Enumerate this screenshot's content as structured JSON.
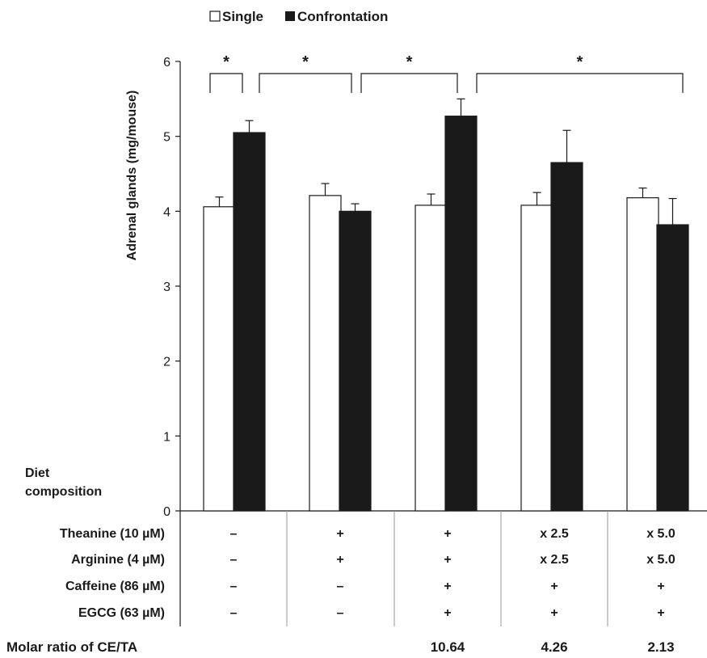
{
  "chart_data": {
    "type": "bar",
    "ylabel": "Adrenal glands (mg/mouse)",
    "ylim": [
      0,
      6
    ],
    "yticks": [
      "0",
      "1",
      "2",
      "3",
      "4",
      "5",
      "6"
    ],
    "grid": false,
    "legend_position": "top-left",
    "groups": 5,
    "series": [
      {
        "name": "Single",
        "color": "#ffffff",
        "values": [
          4.06,
          4.21,
          4.08,
          4.08,
          4.18
        ],
        "errors": [
          0.13,
          0.16,
          0.15,
          0.17,
          0.13
        ]
      },
      {
        "name": "Confrontation",
        "color": "#1a1a1a",
        "values": [
          5.05,
          4.0,
          5.27,
          4.65,
          3.82
        ],
        "errors": [
          0.16,
          0.1,
          0.23,
          0.43,
          0.35
        ]
      }
    ],
    "significance": [
      {
        "label": "*",
        "from": [
          0,
          0
        ],
        "to": [
          0,
          1
        ]
      },
      {
        "label": "*",
        "from": [
          0,
          1
        ],
        "to": [
          1,
          1
        ]
      },
      {
        "label": "*",
        "from": [
          1,
          1
        ],
        "to": [
          2,
          1
        ]
      },
      {
        "label": "*",
        "from": [
          2,
          1
        ],
        "to": [
          4,
          1
        ]
      }
    ],
    "diet_label": [
      "Diet",
      "composition"
    ],
    "table": {
      "rows": [
        {
          "label": "Theanine (10 µM)",
          "values": [
            "–",
            "+",
            "+",
            "x 2.5",
            "x 5.0"
          ]
        },
        {
          "label": "Arginine (4 µM)",
          "values": [
            "–",
            "+",
            "+",
            "x 2.5",
            "x 5.0"
          ]
        },
        {
          "label": "Caffeine (86 µM)",
          "values": [
            "–",
            "–",
            "+",
            "+",
            "+"
          ]
        },
        {
          "label": "EGCG (63 µM)",
          "values": [
            "–",
            "–",
            "+",
            "+",
            "+"
          ]
        }
      ],
      "ratio_label": "Molar ratio of CE/TA",
      "ratio_values": [
        "",
        "",
        "10.64",
        "4.26",
        "2.13"
      ]
    }
  }
}
